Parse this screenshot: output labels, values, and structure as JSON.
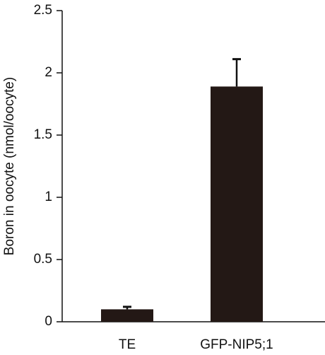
{
  "chart_data": {
    "type": "bar",
    "y_label": "Boron in oocyte (nmol/oocyte)",
    "categories": [
      "TE",
      "GFP-NIP5;1"
    ],
    "values": [
      0.1,
      1.89
    ],
    "errors": [
      0.02,
      0.22
    ],
    "color": "#231815",
    "ylim": [
      0,
      2.5
    ],
    "yticks": [
      0,
      0.5,
      1,
      1.5,
      2,
      2.5
    ]
  }
}
